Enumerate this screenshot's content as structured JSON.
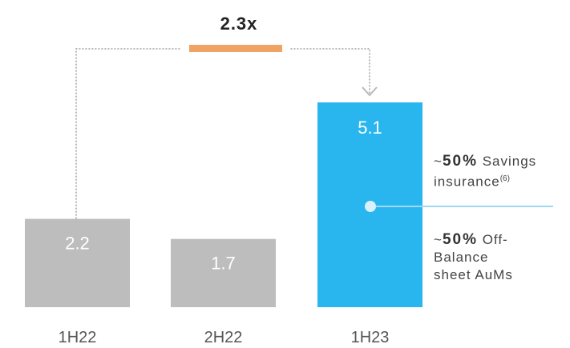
{
  "chart_data": {
    "type": "bar",
    "categories": [
      "1H22",
      "2H22",
      "1H23"
    ],
    "values": [
      2.2,
      1.7,
      5.1
    ],
    "value_labels": [
      "2.2",
      "1.7",
      "5.1"
    ],
    "colors": [
      "#bdbdbd",
      "#bdbdbd",
      "#29b6ef"
    ],
    "ylim": [
      0,
      5.1
    ],
    "growth_label": "2.3x",
    "growth_marker_color": "#f0a463",
    "connector_color": "#b8b8b8",
    "annotations": [
      {
        "prefix": "~",
        "bold": "50%",
        "line1": " Savings",
        "line2": "insurance",
        "sup": "(6)"
      },
      {
        "prefix": "~",
        "bold": "50%",
        "line1": " Off-",
        "line2": "Balance",
        "line3": "sheet AuMs"
      }
    ],
    "pointer_color": "#9fd8f3"
  }
}
